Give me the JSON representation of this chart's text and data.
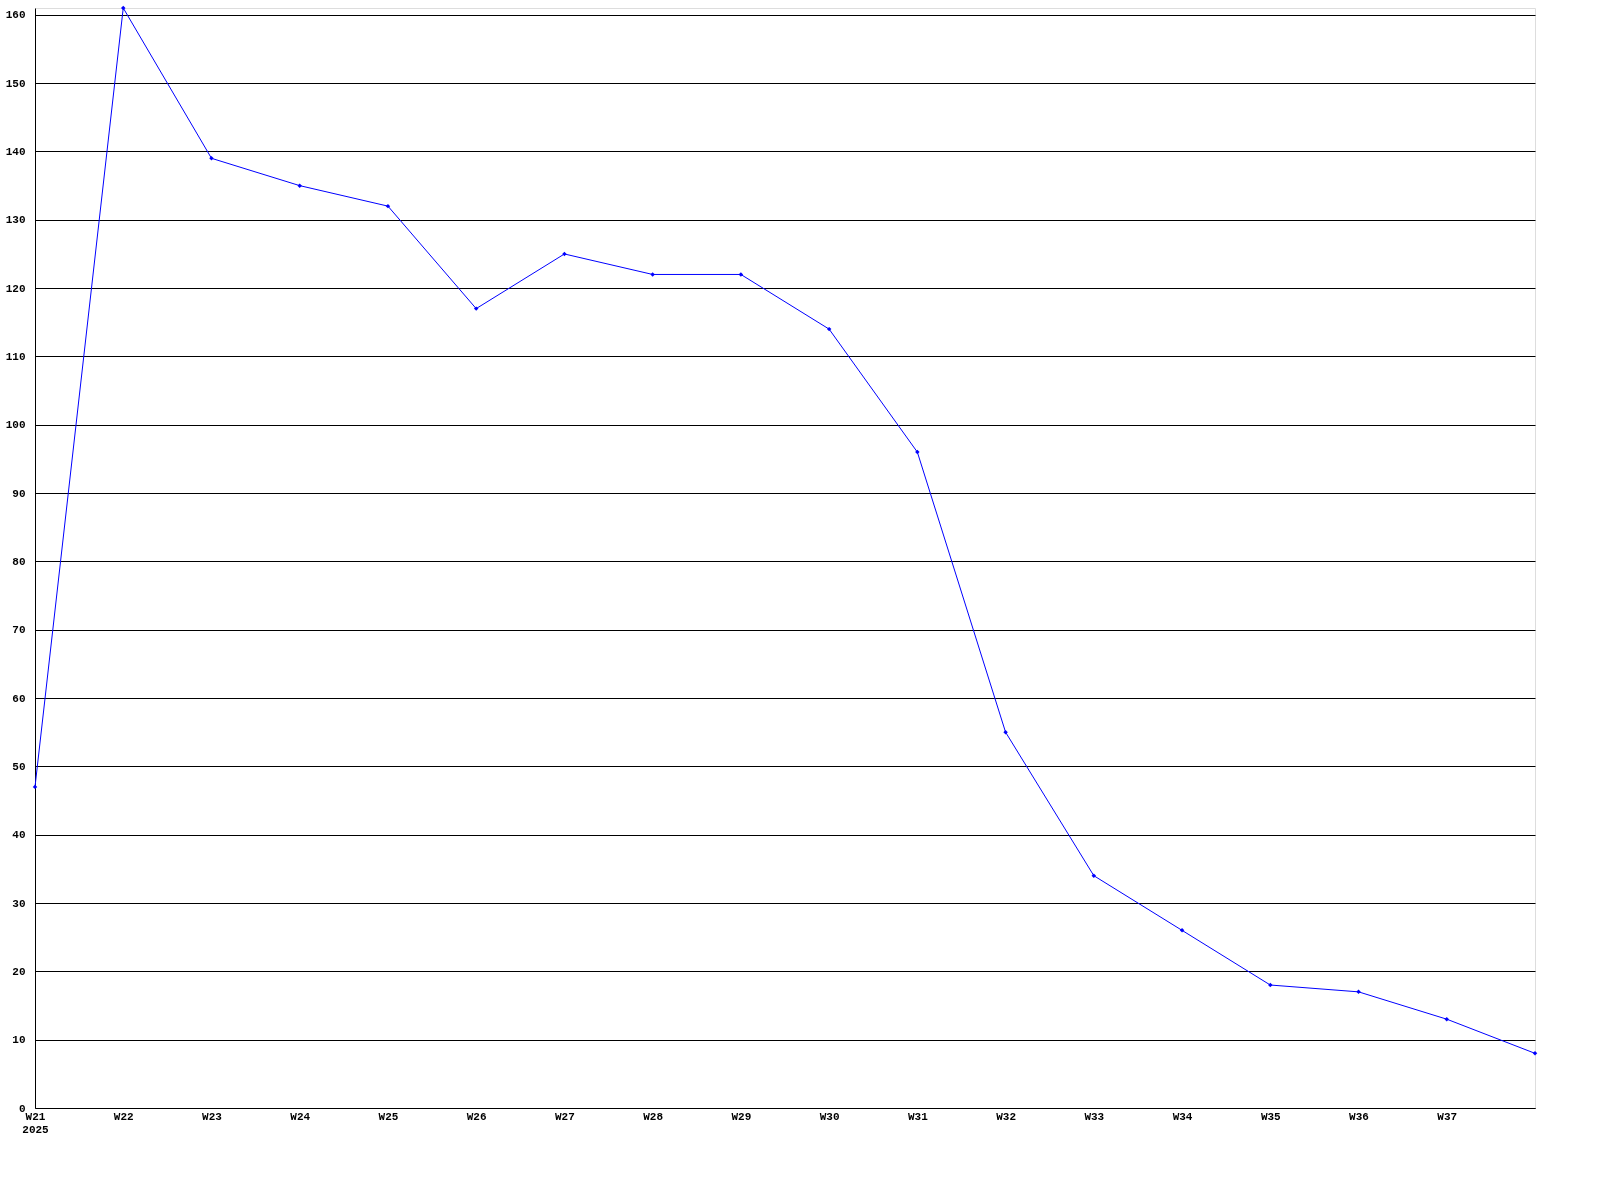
{
  "chart_data": {
    "type": "line",
    "categories": [
      "W21\n2025",
      "W22",
      "W23",
      "W24",
      "W25",
      "W26",
      "W27",
      "W28",
      "W29",
      "W30",
      "W31",
      "W32",
      "W33",
      "W34",
      "W35",
      "W36",
      "W37",
      null
    ],
    "series": [
      {
        "color": "#0000ff",
        "values": [
          47,
          161,
          139,
          135,
          132,
          117,
          125,
          122,
          122,
          114,
          96,
          55,
          34,
          26,
          18,
          17,
          13,
          8
        ]
      }
    ],
    "ylim": [
      0,
      161
    ],
    "yticks": [
      0,
      10,
      20,
      30,
      40,
      50,
      60,
      70,
      80,
      90,
      100,
      110,
      120,
      130,
      140,
      150,
      160
    ],
    "grid": "y",
    "marker": "diamond",
    "line_style": "solid",
    "legend": false
  }
}
